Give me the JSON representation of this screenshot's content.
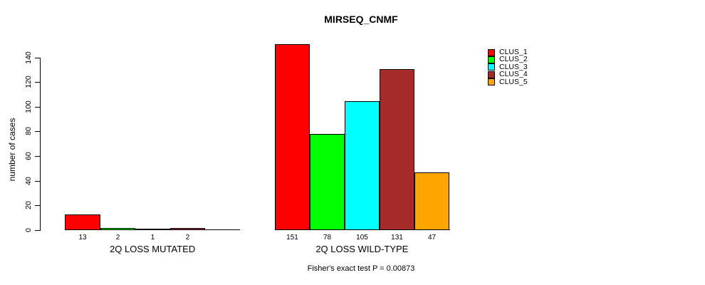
{
  "chart_data": {
    "type": "bar",
    "title": "MIRSEQ_CNMF",
    "ylabel": "number of cases",
    "ylim": [
      0,
      140
    ],
    "yticks": [
      0,
      20,
      40,
      60,
      80,
      100,
      120,
      140
    ],
    "grid": false,
    "legend_position": "right",
    "categories": [
      "2Q LOSS MUTATED",
      "2Q LOSS WILD-TYPE"
    ],
    "series": [
      {
        "name": "CLUS_1",
        "color": "#FF0000",
        "values": [
          13,
          151
        ]
      },
      {
        "name": "CLUS_2",
        "color": "#00FF00",
        "values": [
          2,
          78
        ]
      },
      {
        "name": "CLUS_3",
        "color": "#00FFFF",
        "values": [
          1,
          105
        ]
      },
      {
        "name": "CLUS_4",
        "color": "#A52A2A",
        "values": [
          2,
          131
        ]
      },
      {
        "name": "CLUS_5",
        "color": "#FFA500",
        "values": [
          0,
          47
        ]
      }
    ],
    "bar_value_labels": {
      "2Q LOSS MUTATED": [
        "13",
        "2",
        "1",
        "2"
      ],
      "2Q LOSS WILD-TYPE": [
        "151",
        "78",
        "105",
        "131",
        "47"
      ]
    },
    "annotation": "Fisher's exact test P = 0.00873",
    "axis_color": "#000000",
    "bar_border_color": "#000000"
  }
}
